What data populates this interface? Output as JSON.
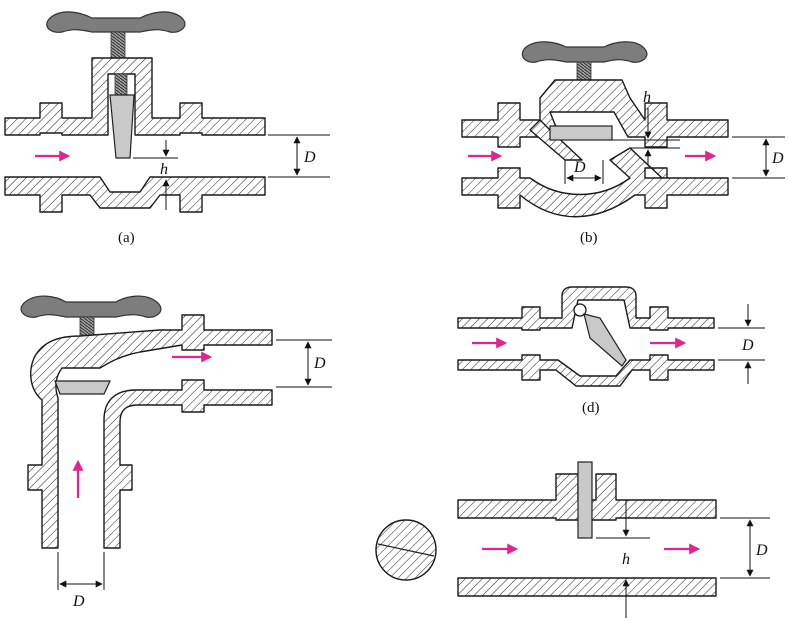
{
  "panels": {
    "a": {
      "caption": "(a)",
      "dim_d": "D",
      "dim_h": "h"
    },
    "b": {
      "caption": "(b)",
      "dim_d": "D",
      "dim_h": "h",
      "dim_inner_d": "D"
    },
    "c": {
      "dim_d_right": "D",
      "dim_d_bottom": "D"
    },
    "d": {
      "caption": "(d)",
      "dim_d": "D"
    },
    "e": {
      "dim_d": "D",
      "dim_h": "h"
    }
  },
  "colors": {
    "flow_arrow": "#e0258f",
    "handle": "#7d7d7d",
    "disc": "#c9c9c9"
  }
}
